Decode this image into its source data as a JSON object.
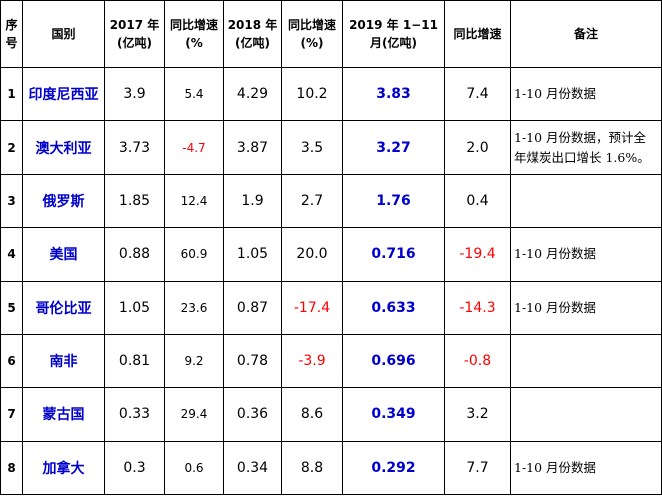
{
  "table": {
    "headers": {
      "idx": "序号",
      "country": "国别",
      "y2017": "2017 年(亿吨)",
      "yoy2017": "同比增速(%",
      "y2018": "2018 年(亿吨)",
      "yoy2018": "同比增速(%)",
      "y2019": "2019 年 1−11 月(亿吨)",
      "yoy2019": "同比增速",
      "note": "备注"
    },
    "rows": [
      {
        "idx": "1",
        "country": "印度尼西亚",
        "y2017": "3.9",
        "yoy2017": "5.4",
        "y2018": "4.29",
        "yoy2018": "10.2",
        "y2019": "3.83",
        "yoy2019": "7.4",
        "note": "1-10 月份数据"
      },
      {
        "idx": "2",
        "country": "澳大利亚",
        "y2017": "3.73",
        "yoy2017": "-4.7",
        "y2018": "3.87",
        "yoy2018": "3.5",
        "y2019": "3.27",
        "yoy2019": "2.0",
        "note": "1-10 月份数据，预计全年煤炭出口增长 1.6%。"
      },
      {
        "idx": "3",
        "country": "俄罗斯",
        "y2017": "1.85",
        "yoy2017": "12.4",
        "y2018": "1.9",
        "yoy2018": "2.7",
        "y2019": "1.76",
        "yoy2019": "0.4",
        "note": ""
      },
      {
        "idx": "4",
        "country": "美国",
        "y2017": "0.88",
        "yoy2017": "60.9",
        "y2018": "1.05",
        "yoy2018": "20.0",
        "y2019": "0.716",
        "yoy2019": "-19.4",
        "note": "1-10 月份数据"
      },
      {
        "idx": "5",
        "country": "哥伦比亚",
        "y2017": "1.05",
        "yoy2017": "23.6",
        "y2018": "0.87",
        "yoy2018": "-17.4",
        "y2019": "0.633",
        "yoy2019": "-14.3",
        "note": "1-10 月份数据"
      },
      {
        "idx": "6",
        "country": "南非",
        "y2017": "0.81",
        "yoy2017": "9.2",
        "y2018": "0.78",
        "yoy2018": "-3.9",
        "y2019": "0.696",
        "yoy2019": "-0.8",
        "note": ""
      },
      {
        "idx": "7",
        "country": "蒙古国",
        "y2017": "0.33",
        "yoy2017": "29.4",
        "y2018": "0.36",
        "yoy2018": "8.6",
        "y2019": "0.349",
        "yoy2019": "3.2",
        "note": ""
      },
      {
        "idx": "8",
        "country": "加拿大",
        "y2017": "0.3",
        "yoy2017": "0.6",
        "y2018": "0.34",
        "yoy2018": "8.8",
        "y2019": "0.292",
        "yoy2019": "7.7",
        "note": "1-10 月份数据"
      }
    ]
  },
  "colors": {
    "positive_text": "#000000",
    "negative_text": "#ff0000",
    "highlight_text": "#0000cc"
  }
}
